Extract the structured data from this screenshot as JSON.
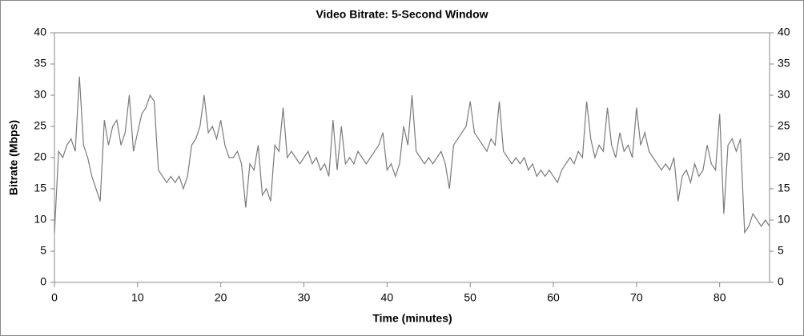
{
  "chart_data": {
    "type": "line",
    "title": "Video Bitrate: 5-Second Window",
    "xlabel": "Time (minutes)",
    "ylabel": "Bitrate (Mbps)",
    "x": [
      0,
      0.5,
      1,
      1.5,
      2,
      2.5,
      3,
      3.5,
      4,
      4.5,
      5,
      5.5,
      6,
      6.5,
      7,
      7.5,
      8,
      8.5,
      9,
      9.5,
      10,
      10.5,
      11,
      11.5,
      12,
      12.5,
      13,
      13.5,
      14,
      14.5,
      15,
      15.5,
      16,
      16.5,
      17,
      17.5,
      18,
      18.5,
      19,
      19.5,
      20,
      20.5,
      21,
      21.5,
      22,
      22.5,
      23,
      23.5,
      24,
      24.5,
      25,
      25.5,
      26,
      26.5,
      27,
      27.5,
      28,
      28.5,
      29,
      29.5,
      30,
      30.5,
      31,
      31.5,
      32,
      32.5,
      33,
      33.5,
      34,
      34.5,
      35,
      35.5,
      36,
      36.5,
      37,
      37.5,
      38,
      38.5,
      39,
      39.5,
      40,
      40.5,
      41,
      41.5,
      42,
      42.5,
      43,
      43.5,
      44,
      44.5,
      45,
      45.5,
      46,
      46.5,
      47,
      47.5,
      48,
      48.5,
      49,
      49.5,
      50,
      50.5,
      51,
      51.5,
      52,
      52.5,
      53,
      53.5,
      54,
      54.5,
      55,
      55.5,
      56,
      56.5,
      57,
      57.5,
      58,
      58.5,
      59,
      59.5,
      60,
      60.5,
      61,
      61.5,
      62,
      62.5,
      63,
      63.5,
      64,
      64.5,
      65,
      65.5,
      66,
      66.5,
      67,
      67.5,
      68,
      68.5,
      69,
      69.5,
      70,
      70.5,
      71,
      71.5,
      72,
      72.5,
      73,
      73.5,
      74,
      74.5,
      75,
      75.5,
      76,
      76.5,
      77,
      77.5,
      78,
      78.5,
      79,
      79.5,
      80,
      80.5,
      81,
      81.5,
      82,
      82.5,
      83,
      83.5,
      84,
      84.5,
      85,
      85.5,
      86
    ],
    "series": [
      {
        "color": "#7a7a7a",
        "values": [
          8,
          21,
          20,
          22,
          23,
          21,
          33,
          22,
          20,
          17,
          15,
          13,
          26,
          22,
          25,
          26,
          22,
          24,
          30,
          21,
          24,
          27,
          28,
          30,
          29,
          18,
          17,
          16,
          17,
          16,
          17,
          15,
          17,
          22,
          23,
          25,
          30,
          24,
          25,
          23,
          26,
          22,
          20,
          20,
          21,
          19,
          12,
          19,
          18,
          22,
          14,
          15,
          13,
          22,
          21,
          28,
          20,
          21,
          20,
          19,
          20,
          21,
          19,
          20,
          18,
          19,
          17,
          26,
          18,
          25,
          19,
          20,
          19,
          21,
          20,
          19,
          20,
          21,
          22,
          24,
          18,
          19,
          17,
          19,
          25,
          22,
          30,
          21,
          20,
          19,
          20,
          19,
          20,
          21,
          19,
          15,
          22,
          23,
          24,
          25,
          29,
          24,
          23,
          22,
          21,
          23,
          22,
          29,
          21,
          20,
          19,
          20,
          19,
          20,
          18,
          19,
          17,
          18,
          17,
          18,
          17,
          16,
          18,
          19,
          20,
          19,
          21,
          20,
          29,
          23,
          20,
          22,
          21,
          28,
          22,
          20,
          24,
          21,
          22,
          20,
          28,
          22,
          24,
          21,
          20,
          19,
          18,
          19,
          18,
          20,
          13,
          17,
          18,
          16,
          19,
          17,
          18,
          22,
          19,
          18,
          27,
          11,
          22,
          23,
          21,
          23,
          8,
          9,
          11,
          10,
          9,
          10,
          9
        ]
      }
    ],
    "xlim": [
      0,
      86
    ],
    "xticks": [
      0,
      10,
      20,
      30,
      40,
      50,
      60,
      70,
      80
    ],
    "ylim": [
      0,
      40
    ],
    "yticks": [
      0,
      5,
      10,
      15,
      20,
      25,
      30,
      35,
      40
    ],
    "y2lim": [
      0,
      40
    ],
    "y2ticks": [
      0,
      5,
      10,
      15,
      20,
      25,
      30,
      35,
      40
    ]
  }
}
